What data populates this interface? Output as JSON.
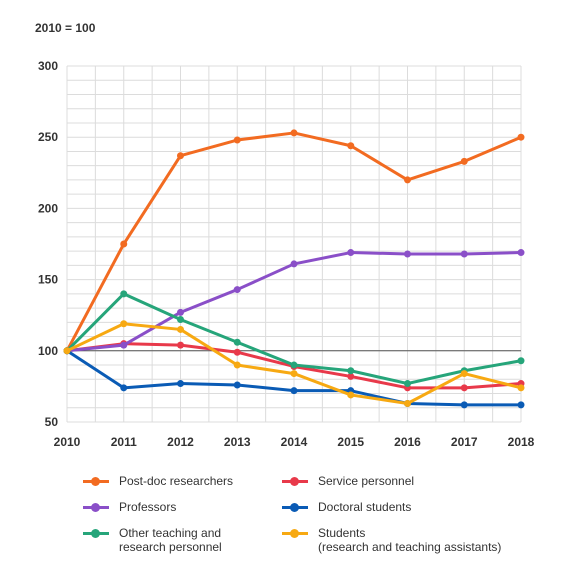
{
  "chart_data": {
    "type": "line",
    "unit_note": "2010 = 100",
    "x": [
      2010,
      2011,
      2012,
      2013,
      2014,
      2015,
      2016,
      2017,
      2018
    ],
    "ylim": [
      50,
      300
    ],
    "yticks": [
      50,
      100,
      150,
      200,
      250,
      300
    ],
    "reference_line": 100,
    "grid": true,
    "legend_position": "bottom",
    "series": [
      {
        "name": "Post-doc researchers",
        "color": "#f26b21",
        "values": [
          100,
          175,
          237,
          248,
          253,
          244,
          220,
          233,
          250
        ]
      },
      {
        "name": "Service personnel",
        "color": "#e8394a",
        "values": [
          100,
          105,
          104,
          99,
          89,
          82,
          74,
          74,
          77
        ]
      },
      {
        "name": "Professors",
        "color": "#8a4fc8",
        "values": [
          100,
          104,
          127,
          143,
          161,
          169,
          168,
          168,
          169
        ]
      },
      {
        "name": "Doctoral students",
        "color": "#0a5bb5",
        "values": [
          100,
          74,
          77,
          76,
          72,
          72,
          63,
          62,
          62
        ]
      },
      {
        "name": "Other teaching and\nresearch personnel",
        "color": "#26a57a",
        "values": [
          100,
          140,
          122,
          106,
          90,
          86,
          77,
          86,
          93
        ]
      },
      {
        "name": "Students\n(research and teaching assistants)",
        "color": "#f7a912",
        "values": [
          100,
          119,
          115,
          90,
          84,
          69,
          63,
          84,
          74
        ]
      }
    ]
  }
}
